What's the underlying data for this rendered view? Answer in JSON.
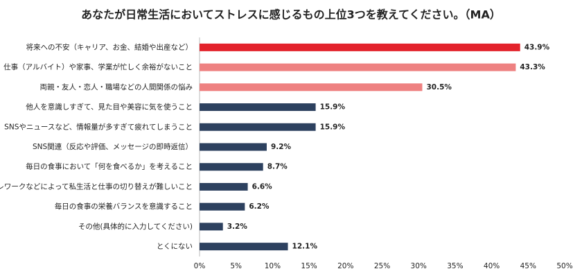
{
  "chart_data": {
    "type": "hbar",
    "title": "あなたが日常生活においてストレスに感じるもの上位3つを教えてください。（MA）",
    "categories": [
      "将来への不安（キャリア、お金、結婚や出産など）",
      "仕事（アルバイト）や家事、学業が忙しく余裕がないこと",
      "両親・友人・恋人・職場などの人間関係の悩み",
      "他人を意識しすぎて、見た目や美容に気を使うこと",
      "SNSやニュースなど、情報量が多すぎて疲れてしまうこと",
      "SNS関連（反応や評価、メッセージの即時返信）",
      "毎日の食事において「何を食べるか」を考えること",
      "テレワークなどによって私生活と仕事の切り替えが難しいこと",
      "毎日の食事の栄養バランスを意識すること",
      "その他(具体的に入力してください)",
      "とくにない"
    ],
    "values": [
      43.9,
      43.3,
      30.5,
      15.9,
      15.9,
      9.2,
      8.7,
      6.6,
      6.2,
      3.2,
      12.1
    ],
    "value_labels": [
      "43.9%",
      "43.3%",
      "30.5%",
      "15.9%",
      "15.9%",
      "9.2%",
      "8.7%",
      "6.6%",
      "6.2%",
      "3.2%",
      "12.1%"
    ],
    "colors": [
      "#e3222b",
      "#ee8181",
      "#ee8181",
      "#2d415f",
      "#2d415f",
      "#2d415f",
      "#2d415f",
      "#2d415f",
      "#2d415f",
      "#2d415f",
      "#2d415f"
    ],
    "xlim": [
      0,
      50
    ],
    "xticks": [
      {
        "value": 0,
        "label": "0%"
      },
      {
        "value": 5,
        "label": "5%"
      },
      {
        "value": 10,
        "label": "10%"
      },
      {
        "value": 15,
        "label": "15%"
      },
      {
        "value": 20,
        "label": "20%"
      },
      {
        "value": 25,
        "label": "25%"
      },
      {
        "value": 30,
        "label": "30%"
      },
      {
        "value": 35,
        "label": "35%"
      },
      {
        "value": 40,
        "label": "40%"
      },
      {
        "value": 45,
        "label": "45%"
      },
      {
        "value": 50,
        "label": "50%"
      }
    ],
    "grid": false
  }
}
